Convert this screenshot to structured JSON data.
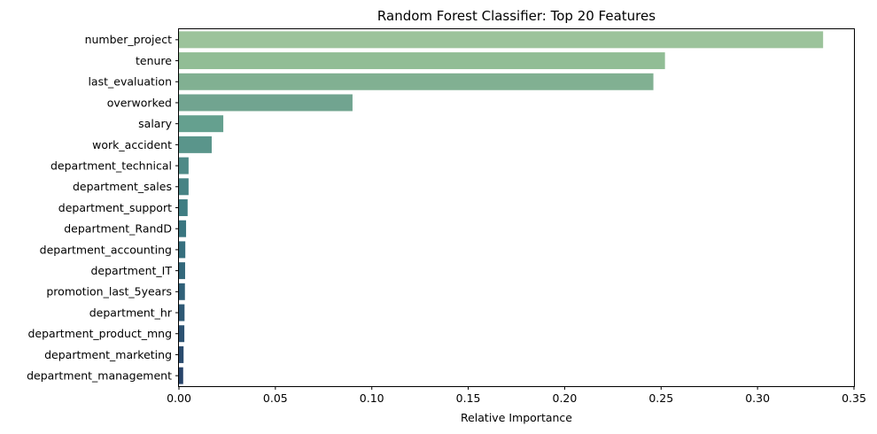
{
  "chart_data": {
    "type": "bar",
    "orientation": "horizontal",
    "title": "Random Forest Classifier: Top 20 Features",
    "xlabel": "Relative Importance",
    "ylabel": "",
    "xlim": [
      0,
      0.35
    ],
    "xticks": [
      "0.00",
      "0.05",
      "0.10",
      "0.15",
      "0.20",
      "0.25",
      "0.30",
      "0.35"
    ],
    "grid": false,
    "categories": [
      "number_project",
      "tenure",
      "last_evaluation",
      "overworked",
      "salary",
      "work_accident",
      "department_technical",
      "department_sales",
      "department_support",
      "department_RandD",
      "department_accounting",
      "department_IT",
      "promotion_last_5years",
      "department_hr",
      "department_product_mng",
      "department_marketing",
      "department_management"
    ],
    "values": [
      0.334,
      0.252,
      0.246,
      0.09,
      0.023,
      0.017,
      0.005,
      0.005,
      0.0045,
      0.0037,
      0.0033,
      0.0032,
      0.0031,
      0.0029,
      0.0028,
      0.0024,
      0.0022
    ],
    "colors": [
      "#9cc39b",
      "#91bd95",
      "#81b092",
      "#71a490",
      "#65a08f",
      "#5a958b",
      "#4f8a87",
      "#478384",
      "#3f7d82",
      "#3a7680",
      "#366f7e",
      "#33687b",
      "#306078",
      "#2e5975",
      "#2c5272",
      "#2a4b6e",
      "#28446a"
    ]
  }
}
